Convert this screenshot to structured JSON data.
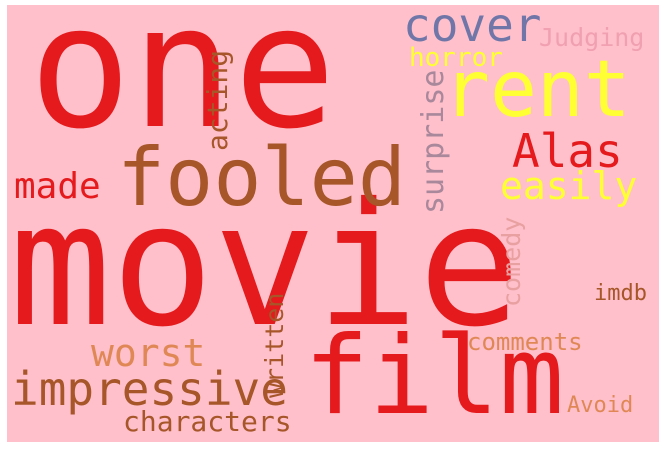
{
  "background": "#ffc0cb",
  "colors": {
    "red": "#e41a1c",
    "brown": "#a65628",
    "slate": "#7077a8",
    "yellow": "#ffff33",
    "salmon": "#e8a0a0",
    "orange": "#e08855",
    "mauve": "#a8889a",
    "pink": "#f0a0b0"
  },
  "words": {
    "one": "one",
    "movie": "movie",
    "film": "film",
    "fooled": "fooled",
    "rent": "rent",
    "cover": "cover",
    "alas": "Alas",
    "impressive": "impressive",
    "worst": "worst",
    "made": "made",
    "easily": "easily",
    "surprise": "surprise",
    "acting": "acting",
    "horror": "horror",
    "judging": "Judging",
    "written": "written",
    "characters": "characters",
    "comedy": "comedy",
    "comments": "comments",
    "imdb": "imdb",
    "avoid": "Avoid"
  }
}
